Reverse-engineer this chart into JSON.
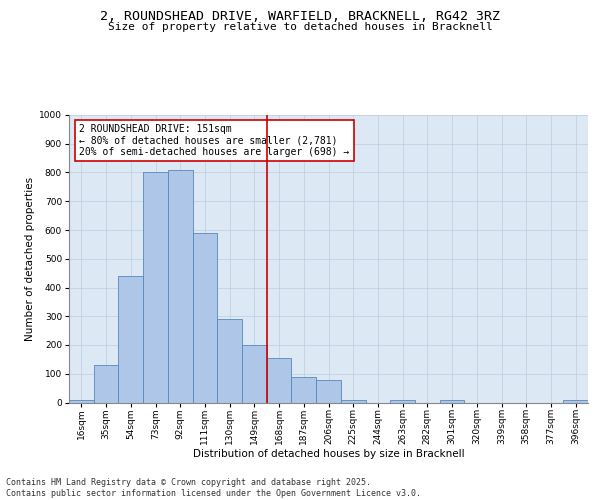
{
  "title_line1": "2, ROUNDSHEAD DRIVE, WARFIELD, BRACKNELL, RG42 3RZ",
  "title_line2": "Size of property relative to detached houses in Bracknell",
  "xlabel": "Distribution of detached houses by size in Bracknell",
  "ylabel": "Number of detached properties",
  "categories": [
    "16sqm",
    "35sqm",
    "54sqm",
    "73sqm",
    "92sqm",
    "111sqm",
    "130sqm",
    "149sqm",
    "168sqm",
    "187sqm",
    "206sqm",
    "225sqm",
    "244sqm",
    "263sqm",
    "282sqm",
    "301sqm",
    "320sqm",
    "339sqm",
    "358sqm",
    "377sqm",
    "396sqm"
  ],
  "values": [
    10,
    130,
    440,
    800,
    810,
    590,
    290,
    200,
    155,
    90,
    80,
    10,
    0,
    10,
    0,
    10,
    0,
    0,
    0,
    0,
    10
  ],
  "bar_color": "#aec6e8",
  "bar_edgecolor": "#5588bb",
  "bar_linewidth": 0.6,
  "vline_x": 7.5,
  "vline_color": "#cc0000",
  "annotation_text": "2 ROUNDSHEAD DRIVE: 151sqm\n← 80% of detached houses are smaller (2,781)\n20% of semi-detached houses are larger (698) →",
  "annotation_box_color": "#cc0000",
  "annotation_text_color": "#000000",
  "annotation_bg_color": "#ffffff",
  "ylim": [
    0,
    1000
  ],
  "yticks": [
    0,
    100,
    200,
    300,
    400,
    500,
    600,
    700,
    800,
    900,
    1000
  ],
  "grid_color": "#b8c8dc",
  "grid_alpha": 0.7,
  "bg_color": "#dce8f4",
  "footer": "Contains HM Land Registry data © Crown copyright and database right 2025.\nContains public sector information licensed under the Open Government Licence v3.0.",
  "title_fontsize": 9.5,
  "subtitle_fontsize": 8,
  "axis_label_fontsize": 7.5,
  "tick_fontsize": 6.5,
  "annotation_fontsize": 7,
  "footer_fontsize": 6
}
